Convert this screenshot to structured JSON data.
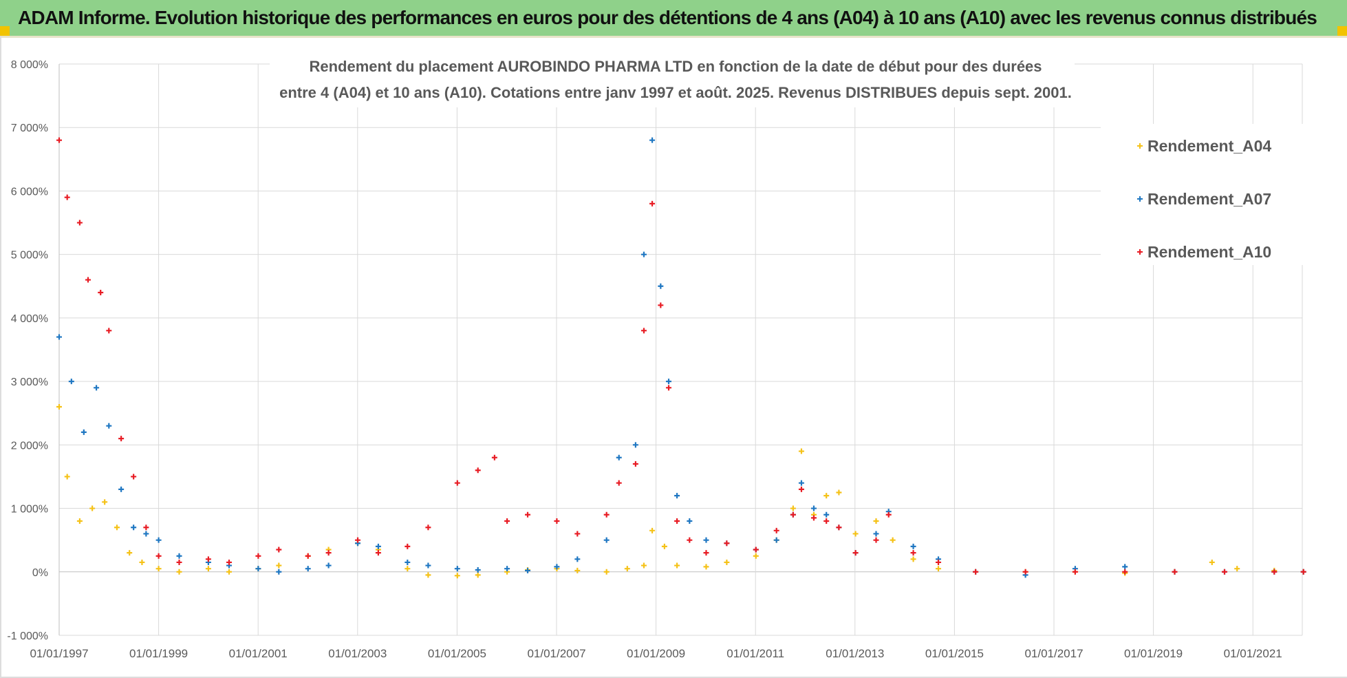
{
  "banner": {
    "title": "ADAM Informe. Evolution historique des performances en euros pour des détentions de 4 ans (A04) à 10 ans (A10) avec les revenus connus distribués"
  },
  "colors": {
    "banner_bg": "#8fd18a",
    "a04": "#f5c218",
    "a07": "#1f77c2",
    "a10": "#e81c24",
    "grid": "#d9d9d9"
  },
  "chart_data": {
    "type": "scatter",
    "title_lines": [
      "Rendement du placement AUROBINDO PHARMA LTD en fonction de la date de début pour des durées",
      "entre 4 (A04) et 10 ans (A10). Cotations entre janv 1997 et août. 2025. Revenus DISTRIBUES depuis sept. 2001."
    ],
    "xlabel": "",
    "ylabel": "",
    "x_ticks": [
      "01/01/1997",
      "01/01/1999",
      "01/01/2001",
      "01/01/2003",
      "01/01/2005",
      "01/01/2007",
      "01/01/2009",
      "01/01/2011",
      "01/01/2013",
      "01/01/2015",
      "01/01/2017",
      "01/01/2019",
      "01/01/2021"
    ],
    "x_range": [
      "1997-01-01",
      "2022-01-01"
    ],
    "y_ticks": [
      "-1 000%",
      "0%",
      "1 000%",
      "2 000%",
      "3 000%",
      "4 000%",
      "5 000%",
      "6 000%",
      "7 000%",
      "8 000%"
    ],
    "ylim": [
      -1000,
      8000
    ],
    "legend_position": "top-right",
    "grid": true,
    "series": [
      {
        "name": "Rendement_A04",
        "marker": "+",
        "points": [
          [
            "1997-01-01",
            2600
          ],
          [
            "1997-03-01",
            1500
          ],
          [
            "1997-06-01",
            800
          ],
          [
            "1997-09-01",
            1000
          ],
          [
            "1997-12-01",
            1100
          ],
          [
            "1998-03-01",
            700
          ],
          [
            "1998-06-01",
            300
          ],
          [
            "1998-09-01",
            150
          ],
          [
            "1999-01-01",
            50
          ],
          [
            "1999-06-01",
            0
          ],
          [
            "2000-01-01",
            50
          ],
          [
            "2000-06-01",
            0
          ],
          [
            "2001-01-01",
            50
          ],
          [
            "2001-06-01",
            100
          ],
          [
            "2002-01-01",
            250
          ],
          [
            "2002-06-01",
            350
          ],
          [
            "2003-01-01",
            450
          ],
          [
            "2003-06-01",
            350
          ],
          [
            "2004-01-01",
            50
          ],
          [
            "2004-06-01",
            -50
          ],
          [
            "2005-01-01",
            -60
          ],
          [
            "2005-06-01",
            -50
          ],
          [
            "2006-01-01",
            0
          ],
          [
            "2006-06-01",
            30
          ],
          [
            "2007-01-01",
            50
          ],
          [
            "2007-06-01",
            20
          ],
          [
            "2008-01-01",
            0
          ],
          [
            "2008-06-01",
            50
          ],
          [
            "2008-10-01",
            100
          ],
          [
            "2008-12-01",
            650
          ],
          [
            "2009-03-01",
            400
          ],
          [
            "2009-06-01",
            100
          ],
          [
            "2010-01-01",
            80
          ],
          [
            "2010-06-01",
            150
          ],
          [
            "2011-01-01",
            250
          ],
          [
            "2011-06-01",
            500
          ],
          [
            "2011-10-01",
            1000
          ],
          [
            "2011-12-01",
            1900
          ],
          [
            "2012-03-01",
            900
          ],
          [
            "2012-06-01",
            1200
          ],
          [
            "2012-09-01",
            1250
          ],
          [
            "2013-01-01",
            600
          ],
          [
            "2013-06-01",
            800
          ],
          [
            "2013-10-01",
            500
          ],
          [
            "2014-03-01",
            200
          ],
          [
            "2014-09-01",
            50
          ],
          [
            "2015-06-01",
            0
          ],
          [
            "2016-06-01",
            0
          ],
          [
            "2017-06-01",
            0
          ],
          [
            "2018-06-01",
            -20
          ],
          [
            "2019-06-01",
            0
          ],
          [
            "2020-03-01",
            150
          ],
          [
            "2020-09-01",
            50
          ],
          [
            "2021-06-01",
            20
          ],
          [
            "2022-01-01",
            0
          ]
        ]
      },
      {
        "name": "Rendement_A07",
        "marker": "+",
        "points": [
          [
            "1997-01-01",
            3700
          ],
          [
            "1997-04-01",
            3000
          ],
          [
            "1997-07-01",
            2200
          ],
          [
            "1997-10-01",
            2900
          ],
          [
            "1998-01-01",
            2300
          ],
          [
            "1998-04-01",
            1300
          ],
          [
            "1998-07-01",
            700
          ],
          [
            "1998-10-01",
            600
          ],
          [
            "1999-01-01",
            500
          ],
          [
            "1999-06-01",
            250
          ],
          [
            "2000-01-01",
            150
          ],
          [
            "2000-06-01",
            100
          ],
          [
            "2001-01-01",
            50
          ],
          [
            "2001-06-01",
            0
          ],
          [
            "2002-01-01",
            50
          ],
          [
            "2002-06-01",
            100
          ],
          [
            "2003-01-01",
            450
          ],
          [
            "2003-06-01",
            400
          ],
          [
            "2004-01-01",
            150
          ],
          [
            "2004-06-01",
            100
          ],
          [
            "2005-01-01",
            50
          ],
          [
            "2005-06-01",
            30
          ],
          [
            "2006-01-01",
            50
          ],
          [
            "2006-06-01",
            20
          ],
          [
            "2007-01-01",
            80
          ],
          [
            "2007-06-01",
            200
          ],
          [
            "2008-01-01",
            500
          ],
          [
            "2008-04-01",
            1800
          ],
          [
            "2008-08-01",
            2000
          ],
          [
            "2008-10-01",
            5000
          ],
          [
            "2008-12-01",
            6800
          ],
          [
            "2009-02-01",
            4500
          ],
          [
            "2009-04-01",
            3000
          ],
          [
            "2009-06-01",
            1200
          ],
          [
            "2009-09-01",
            800
          ],
          [
            "2010-01-01",
            500
          ],
          [
            "2010-06-01",
            450
          ],
          [
            "2011-01-01",
            350
          ],
          [
            "2011-06-01",
            500
          ],
          [
            "2011-10-01",
            900
          ],
          [
            "2011-12-01",
            1400
          ],
          [
            "2012-03-01",
            1000
          ],
          [
            "2012-06-01",
            900
          ],
          [
            "2012-09-01",
            700
          ],
          [
            "2013-01-01",
            300
          ],
          [
            "2013-06-01",
            600
          ],
          [
            "2013-09-01",
            950
          ],
          [
            "2014-03-01",
            400
          ],
          [
            "2014-09-01",
            200
          ],
          [
            "2015-06-01",
            0
          ],
          [
            "2016-06-01",
            -50
          ],
          [
            "2017-06-01",
            50
          ],
          [
            "2018-06-01",
            80
          ],
          [
            "2019-06-01",
            0
          ],
          [
            "2020-06-01",
            0
          ],
          [
            "2021-06-01",
            0
          ],
          [
            "2022-01-01",
            0
          ]
        ]
      },
      {
        "name": "Rendement_A10",
        "marker": "+",
        "points": [
          [
            "1997-01-01",
            6800
          ],
          [
            "1997-03-01",
            5900
          ],
          [
            "1997-06-01",
            5500
          ],
          [
            "1997-08-01",
            4600
          ],
          [
            "1997-11-01",
            4400
          ],
          [
            "1998-01-01",
            3800
          ],
          [
            "1998-04-01",
            2100
          ],
          [
            "1998-07-01",
            1500
          ],
          [
            "1998-10-01",
            700
          ],
          [
            "1999-01-01",
            250
          ],
          [
            "1999-06-01",
            150
          ],
          [
            "2000-01-01",
            200
          ],
          [
            "2000-06-01",
            150
          ],
          [
            "2001-01-01",
            250
          ],
          [
            "2001-06-01",
            350
          ],
          [
            "2002-01-01",
            250
          ],
          [
            "2002-06-01",
            300
          ],
          [
            "2003-01-01",
            500
          ],
          [
            "2003-06-01",
            300
          ],
          [
            "2004-01-01",
            400
          ],
          [
            "2004-06-01",
            700
          ],
          [
            "2005-01-01",
            1400
          ],
          [
            "2005-06-01",
            1600
          ],
          [
            "2005-10-01",
            1800
          ],
          [
            "2006-01-01",
            800
          ],
          [
            "2006-06-01",
            900
          ],
          [
            "2007-01-01",
            800
          ],
          [
            "2007-06-01",
            600
          ],
          [
            "2008-01-01",
            900
          ],
          [
            "2008-04-01",
            1400
          ],
          [
            "2008-08-01",
            1700
          ],
          [
            "2008-10-01",
            3800
          ],
          [
            "2008-12-01",
            5800
          ],
          [
            "2009-02-01",
            4200
          ],
          [
            "2009-04-01",
            2900
          ],
          [
            "2009-06-01",
            800
          ],
          [
            "2009-09-01",
            500
          ],
          [
            "2010-01-01",
            300
          ],
          [
            "2010-06-01",
            450
          ],
          [
            "2011-01-01",
            350
          ],
          [
            "2011-06-01",
            650
          ],
          [
            "2011-10-01",
            900
          ],
          [
            "2011-12-01",
            1300
          ],
          [
            "2012-03-01",
            850
          ],
          [
            "2012-06-01",
            800
          ],
          [
            "2012-09-01",
            700
          ],
          [
            "2013-01-01",
            300
          ],
          [
            "2013-06-01",
            500
          ],
          [
            "2013-09-01",
            900
          ],
          [
            "2014-03-01",
            300
          ],
          [
            "2014-09-01",
            150
          ],
          [
            "2015-06-01",
            0
          ],
          [
            "2016-06-01",
            0
          ],
          [
            "2017-06-01",
            0
          ],
          [
            "2018-06-01",
            0
          ],
          [
            "2019-06-01",
            0
          ],
          [
            "2020-06-01",
            0
          ],
          [
            "2021-06-01",
            0
          ],
          [
            "2022-01-01",
            0
          ]
        ]
      }
    ]
  }
}
